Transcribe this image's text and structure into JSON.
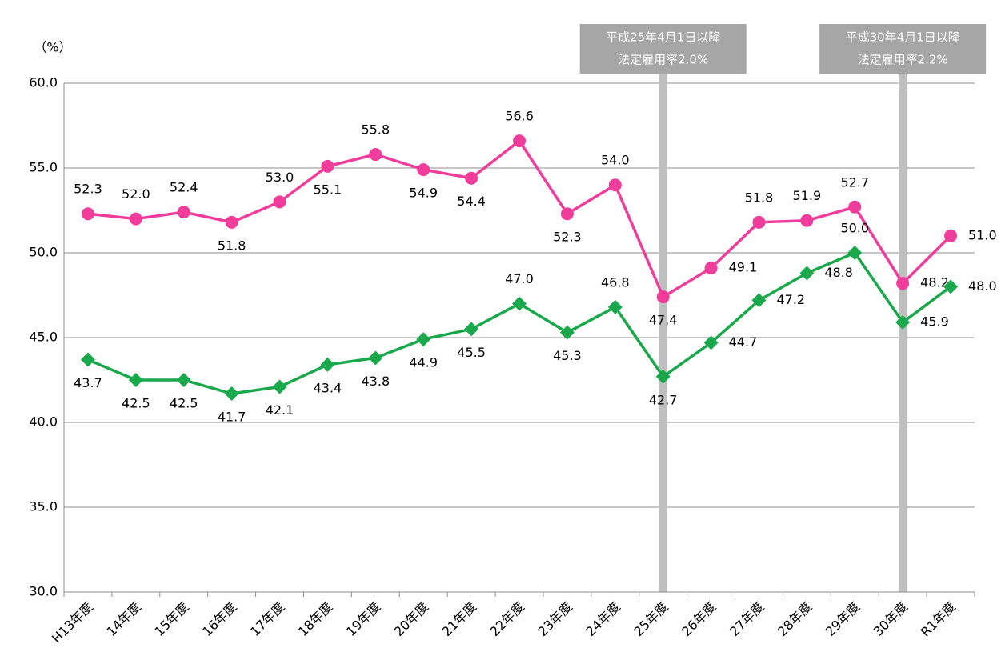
{
  "chart_data": {
    "type": "line",
    "y_label": "（%）",
    "categories": [
      "H13年度",
      "14年度",
      "15年度",
      "16年度",
      "17年度",
      "18年度",
      "19年度",
      "20年度",
      "21年度",
      "22年度",
      "23年度",
      "24年度",
      "25年度",
      "26年度",
      "27年度",
      "28年度",
      "29年度",
      "30年度",
      "R1年度"
    ],
    "series": [
      {
        "color": "#f03c9b",
        "marker": "circle",
        "values": [
          52.3,
          52.0,
          52.4,
          51.8,
          53.0,
          55.1,
          55.8,
          54.9,
          54.4,
          56.6,
          52.3,
          54.0,
          47.4,
          49.1,
          51.8,
          51.9,
          52.7,
          48.2,
          51.0
        ],
        "value_labels": [
          "52.3",
          "52.0",
          "52.4",
          "51.8",
          "53.0",
          "55.1",
          "55.8",
          "54.9",
          "54.4",
          "56.6",
          "52.3",
          "54.0",
          "47.4",
          "49.1",
          "51.8",
          "51.9",
          "52.7",
          "48.2",
          "51.0"
        ]
      },
      {
        "color": "#19a84b",
        "marker": "diamond",
        "values": [
          43.7,
          42.5,
          42.5,
          41.7,
          42.1,
          43.4,
          43.8,
          44.9,
          45.5,
          47.0,
          45.3,
          46.8,
          42.7,
          44.7,
          47.2,
          48.8,
          50.0,
          45.9,
          48.0
        ],
        "value_labels": [
          "43.7",
          "42.5",
          "42.5",
          "41.7",
          "42.1",
          "43.4",
          "43.8",
          "44.9",
          "45.5",
          "47.0",
          "45.3",
          "46.8",
          "42.7",
          "44.7",
          "47.2",
          "48.8",
          "50.0",
          "45.9",
          "48.0"
        ]
      }
    ],
    "ylim": [
      30,
      60
    ],
    "yticks": [
      {
        "value": 30,
        "label": "30.0"
      },
      {
        "value": 35,
        "label": "35.0"
      },
      {
        "value": 40,
        "label": "40.0"
      },
      {
        "value": 45,
        "label": "45.0"
      },
      {
        "value": 50,
        "label": "50.0"
      },
      {
        "value": 55,
        "label": "55.0"
      },
      {
        "value": 60,
        "label": "60.0"
      }
    ],
    "grid": true,
    "annotations": [
      {
        "category": "25年度",
        "text": [
          "平成25年4月1日以降",
          "法定雇用率2.0%"
        ]
      },
      {
        "category": "30年度",
        "text": [
          "平成30年4月1日以降",
          "法定雇用率2.2%"
        ]
      }
    ]
  }
}
